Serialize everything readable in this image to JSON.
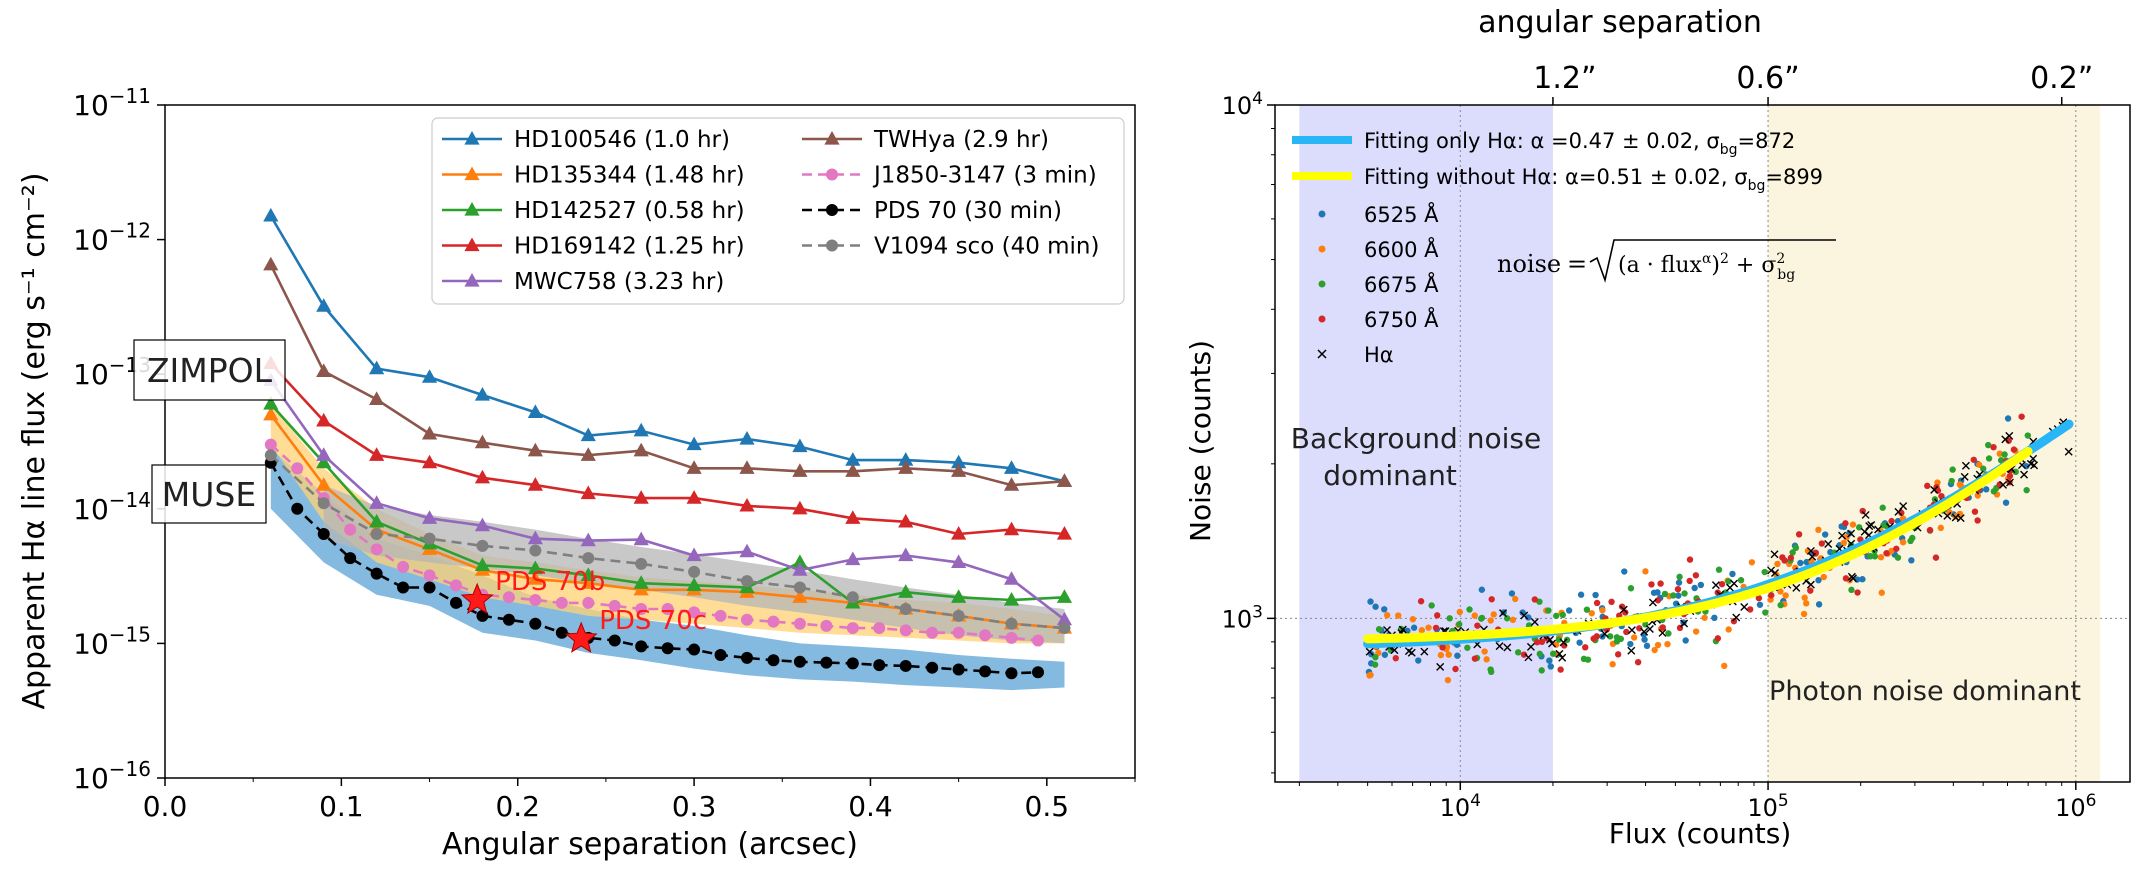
{
  "chart_data": [
    {
      "type": "line",
      "title": "",
      "xlabel": "Angular separation (arcsec)",
      "ylabel": "Apparent Hα line flux (erg s⁻¹ cm⁻²)",
      "yscale": "log",
      "xlim": [
        0.0,
        0.55
      ],
      "ylim": [
        1e-16,
        1e-11
      ],
      "x_ticks": [
        "0.0",
        "0.1",
        "0.2",
        "0.3",
        "0.4",
        "0.5"
      ],
      "y_ticks": [
        {
          "base": "10",
          "exp": "−11"
        },
        {
          "base": "10",
          "exp": "−12"
        },
        {
          "base": "10",
          "exp": "−13"
        },
        {
          "base": "10",
          "exp": "−14"
        },
        {
          "base": "10",
          "exp": "−15"
        },
        {
          "base": "10",
          "exp": "−16"
        }
      ],
      "legend_placement": "top-right",
      "colors": {
        "blue": "#1f77b4",
        "orange": "#ff7f0e",
        "green": "#2ca02c",
        "red": "#d62728",
        "purple": "#9467bd",
        "brown": "#8c564b",
        "pink": "#e377c2",
        "black": "#000000",
        "gray": "#7f7f7f",
        "band_blue": "#5ba3d6",
        "band_orange": "#ffd173",
        "band_gray": "#b5b5b5",
        "planet_star": "#ff1a1a"
      },
      "series": [
        {
          "name": "HD100546 (1.0 hr)",
          "color": "#1f77b4",
          "marker": "triangle",
          "dash": false,
          "x": [
            0.06,
            0.09,
            0.12,
            0.15,
            0.18,
            0.21,
            0.24,
            0.27,
            0.3,
            0.33,
            0.36,
            0.39,
            0.42,
            0.45,
            0.48,
            0.51
          ],
          "y": [
            1.5e-12,
            3.2e-13,
            1.1e-13,
            9.5e-14,
            7e-14,
            5.2e-14,
            3.5e-14,
            3.8e-14,
            3e-14,
            3.3e-14,
            2.9e-14,
            2.3e-14,
            2.3e-14,
            2.2e-14,
            2e-14,
            1.6e-14
          ]
        },
        {
          "name": "HD135344 (1.48 hr)",
          "color": "#ff7f0e",
          "marker": "triangle",
          "dash": false,
          "x": [
            0.06,
            0.09,
            0.12,
            0.15,
            0.18,
            0.21,
            0.24,
            0.27,
            0.3,
            0.33,
            0.36,
            0.39,
            0.42,
            0.45,
            0.48,
            0.51
          ],
          "y": [
            5e-14,
            1.5e-14,
            7e-15,
            5e-15,
            3.5e-15,
            3e-15,
            2.8e-15,
            2.5e-15,
            2.5e-15,
            2.4e-15,
            2.2e-15,
            2e-15,
            1.8e-15,
            1.6e-15,
            1.4e-15,
            1.3e-15
          ]
        },
        {
          "name": "HD142527 (0.58 hr)",
          "color": "#2ca02c",
          "marker": "triangle",
          "dash": false,
          "x": [
            0.06,
            0.09,
            0.12,
            0.15,
            0.18,
            0.21,
            0.24,
            0.27,
            0.3,
            0.33,
            0.36,
            0.39,
            0.42,
            0.45,
            0.48,
            0.51
          ],
          "y": [
            6e-14,
            2.2e-14,
            8e-15,
            5.5e-15,
            3.8e-15,
            3.6e-15,
            3.2e-15,
            2.8e-15,
            2.7e-15,
            2.6e-15,
            4e-15,
            2e-15,
            2.4e-15,
            2.2e-15,
            2.1e-15,
            2.2e-15
          ]
        },
        {
          "name": "HD169142 (1.25 hr)",
          "color": "#d62728",
          "marker": "triangle",
          "dash": false,
          "x": [
            0.06,
            0.09,
            0.12,
            0.15,
            0.18,
            0.21,
            0.24,
            0.27,
            0.3,
            0.33,
            0.36,
            0.39,
            0.42,
            0.45,
            0.48,
            0.51
          ],
          "y": [
            1.2e-13,
            4.5e-14,
            2.5e-14,
            2.2e-14,
            1.7e-14,
            1.5e-14,
            1.3e-14,
            1.2e-14,
            1.2e-14,
            1.05e-14,
            1e-14,
            8.5e-15,
            8e-15,
            6.5e-15,
            7e-15,
            6.5e-15
          ]
        },
        {
          "name": "MWC758 (3.23 hr)",
          "color": "#9467bd",
          "marker": "triangle",
          "dash": false,
          "x": [
            0.06,
            0.09,
            0.12,
            0.15,
            0.18,
            0.21,
            0.24,
            0.27,
            0.3,
            0.33,
            0.36,
            0.39,
            0.42,
            0.45,
            0.48,
            0.51
          ],
          "y": [
            9e-14,
            2.5e-14,
            1.1e-14,
            8.5e-15,
            7.5e-15,
            6e-15,
            5.8e-15,
            5.9e-15,
            4.5e-15,
            4.8e-15,
            3.5e-15,
            4.2e-15,
            4.5e-15,
            4e-15,
            3e-15,
            1.5e-15
          ]
        },
        {
          "name": "TWHya (2.9 hr)",
          "color": "#8c564b",
          "marker": "triangle",
          "dash": false,
          "x": [
            0.06,
            0.09,
            0.12,
            0.15,
            0.18,
            0.21,
            0.24,
            0.27,
            0.3,
            0.33,
            0.36,
            0.39,
            0.42,
            0.45,
            0.48,
            0.51
          ],
          "y": [
            6.5e-13,
            1.05e-13,
            6.5e-14,
            3.6e-14,
            3.1e-14,
            2.7e-14,
            2.5e-14,
            2.7e-14,
            2e-14,
            2e-14,
            1.9e-14,
            1.9e-14,
            2e-14,
            1.9e-14,
            1.5e-14,
            1.6e-14
          ]
        },
        {
          "name": "J1850-3147 (3 min)",
          "color": "#e377c2",
          "marker": "circle",
          "dash": true,
          "x": [
            0.06,
            0.075,
            0.09,
            0.105,
            0.12,
            0.135,
            0.15,
            0.165,
            0.18,
            0.195,
            0.21,
            0.225,
            0.24,
            0.255,
            0.27,
            0.285,
            0.3,
            0.315,
            0.33,
            0.345,
            0.36,
            0.375,
            0.39,
            0.405,
            0.42,
            0.435,
            0.45,
            0.465,
            0.48,
            0.495
          ],
          "y": [
            3e-14,
            2e-14,
            1.2e-14,
            7e-15,
            5e-15,
            3.7e-15,
            3.2e-15,
            2.7e-15,
            2.3e-15,
            2.2e-15,
            2.1e-15,
            2e-15,
            2e-15,
            1.9e-15,
            1.8e-15,
            1.8e-15,
            1.7e-15,
            1.6e-15,
            1.5e-15,
            1.45e-15,
            1.4e-15,
            1.35e-15,
            1.3e-15,
            1.3e-15,
            1.25e-15,
            1.2e-15,
            1.2e-15,
            1.15e-15,
            1.1e-15,
            1.05e-15
          ]
        },
        {
          "name": "PDS 70 (30 min)",
          "color": "#000000",
          "marker": "circle",
          "dash": true,
          "x": [
            0.06,
            0.075,
            0.09,
            0.105,
            0.12,
            0.135,
            0.15,
            0.165,
            0.18,
            0.195,
            0.21,
            0.225,
            0.24,
            0.255,
            0.27,
            0.285,
            0.3,
            0.315,
            0.33,
            0.345,
            0.36,
            0.375,
            0.39,
            0.405,
            0.42,
            0.435,
            0.45,
            0.465,
            0.48,
            0.495
          ],
          "y": [
            2.2e-14,
            1e-14,
            6.5e-15,
            4.3e-15,
            3.3e-15,
            2.6e-15,
            2.6e-15,
            2e-15,
            1.6e-15,
            1.5e-15,
            1.4e-15,
            1.2e-15,
            1.1e-15,
            1.05e-15,
            9.5e-16,
            9.2e-16,
            9e-16,
            8.2e-16,
            7.8e-16,
            7.5e-16,
            7.3e-16,
            7.2e-16,
            7.1e-16,
            6.9e-16,
            6.8e-16,
            6.6e-16,
            6.4e-16,
            6.2e-16,
            6e-16,
            6.1e-16
          ]
        },
        {
          "name": "V1094 sco (40 min)",
          "color": "#7f7f7f",
          "marker": "circle",
          "dash": true,
          "x": [
            0.06,
            0.09,
            0.12,
            0.15,
            0.18,
            0.21,
            0.24,
            0.27,
            0.3,
            0.33,
            0.36,
            0.39,
            0.42,
            0.45,
            0.48,
            0.51
          ],
          "y": [
            2.5e-14,
            1.1e-14,
            6.5e-15,
            6e-15,
            5.3e-15,
            4.9e-15,
            4.3e-15,
            3.9e-15,
            3.4e-15,
            2.9e-15,
            2.6e-15,
            2.2e-15,
            1.8e-15,
            1.6e-15,
            1.4e-15,
            1.3e-15
          ]
        }
      ],
      "bands": [
        {
          "color": "#5ba3d6",
          "x": [
            0.06,
            0.09,
            0.12,
            0.15,
            0.18,
            0.21,
            0.24,
            0.27,
            0.3,
            0.33,
            0.36,
            0.39,
            0.42,
            0.45,
            0.48,
            0.51
          ],
          "low": [
            1e-14,
            4e-15,
            2.3e-15,
            1.9e-15,
            1.2e-15,
            1.05e-15,
            8.5e-16,
            7.5e-16,
            6.5e-16,
            5.8e-16,
            5.4e-16,
            5.2e-16,
            4.9e-16,
            4.7e-16,
            4.5e-16,
            4.7e-16
          ],
          "high": [
            2.8e-14,
            1.3e-14,
            6e-15,
            4.5e-15,
            3.2e-15,
            2.2e-15,
            1.8e-15,
            1.5e-15,
            1.35e-15,
            1.15e-15,
            1e-15,
            9.5e-16,
            9e-16,
            8.2e-16,
            7.7e-16,
            7.3e-16
          ]
        },
        {
          "color": "#ffd173",
          "x": [
            0.06,
            0.09,
            0.12,
            0.15,
            0.18,
            0.21,
            0.24,
            0.27,
            0.3,
            0.33,
            0.36,
            0.39,
            0.42,
            0.45,
            0.48,
            0.51
          ],
          "low": [
            3e-14,
            8e-15,
            4e-15,
            3e-15,
            2.2e-15,
            1.9e-15,
            1.6e-15,
            1.5e-15,
            1.4e-15,
            1.3e-15,
            1.2e-15,
            1.15e-15,
            1.1e-15,
            1.05e-15,
            1e-15,
            1e-15
          ],
          "high": [
            6e-14,
            2e-14,
            1e-14,
            6.5e-15,
            4.5e-15,
            4e-15,
            3.5e-15,
            3.1e-15,
            2.9e-15,
            2.7e-15,
            2.5e-15,
            2.3e-15,
            2.1e-15,
            2e-15,
            1.8e-15,
            1.6e-15
          ]
        },
        {
          "color": "#b5b5b5",
          "x": [
            0.09,
            0.12,
            0.15,
            0.18,
            0.21,
            0.24,
            0.27,
            0.3,
            0.33,
            0.36,
            0.39,
            0.42,
            0.45,
            0.48,
            0.51
          ],
          "low": [
            6e-15,
            4.5e-15,
            4e-15,
            3.6e-15,
            3.2e-15,
            2.8e-15,
            2.5e-15,
            2.2e-15,
            1.9e-15,
            1.7e-15,
            1.5e-15,
            1.3e-15,
            1.15e-15,
            1.05e-15,
            1e-15
          ],
          "high": [
            1.5e-14,
            1.05e-14,
            9e-15,
            8e-15,
            7e-15,
            6e-15,
            5.2e-15,
            4.6e-15,
            4e-15,
            3.5e-15,
            3e-15,
            2.6e-15,
            2.3e-15,
            2e-15,
            1.8e-15
          ]
        }
      ],
      "planets": [
        {
          "label": "PDS 70b",
          "x": 0.177,
          "y": 2.1e-15
        },
        {
          "label": "PDS 70c",
          "x": 0.236,
          "y": 1.08e-15
        }
      ],
      "annotations": [
        {
          "label": "ZIMPOL",
          "y": 1e-13
        },
        {
          "label": "MUSE",
          "y": 1e-14
        }
      ]
    },
    {
      "type": "scatter",
      "title": "angular separation",
      "xlabel": "Flux (counts)",
      "ylabel": "Noise (counts)",
      "xscale": "log",
      "yscale": "log",
      "xlim": [
        2500,
        1500000
      ],
      "ylim": [
        480,
        10000
      ],
      "x_ticks": [
        {
          "base": "10",
          "exp": "4"
        },
        {
          "base": "10",
          "exp": "5"
        },
        {
          "base": "10",
          "exp": "6"
        }
      ],
      "y_ticks": [
        {
          "base": "10",
          "exp": "3"
        },
        {
          "base": "10",
          "exp": "4"
        }
      ],
      "top_ticks": [
        {
          "label": "1.2”",
          "x": 20000
        },
        {
          "label": "0.6”",
          "x": 100000
        },
        {
          "label": "0.2”",
          "x": 900000
        }
      ],
      "regions": [
        {
          "label_lines": [
            "Background noise",
            "dominant"
          ],
          "x_range": [
            3000,
            20000
          ],
          "color": "#dcdcfc"
        },
        {
          "label_lines": [
            "Photon noise dominant"
          ],
          "x_range": [
            100000,
            1200000
          ],
          "color": "#fbf5df"
        }
      ],
      "formula": "noise = √((a · flux^α)² + σ_bg²)",
      "fits": [
        {
          "label": "Fitting only Hα: α =0.47 ± 0.02, σ_bg=872",
          "label_main": "Fitting only Hα: α =0.47 ± 0.02, σ",
          "label_sub": "bg",
          "label_tail": "=872",
          "color": "#29b6f6",
          "alpha": 0.47,
          "sigma_bg": 872,
          "a": 3.45,
          "x_range": [
            5000,
            950000
          ]
        },
        {
          "label": "Fitting without Hα: α=0.51 ± 0.02, σ_bg=899",
          "label_main": "Fitting without Hα: α=0.51 ± 0.02, σ",
          "label_sub": "bg",
          "label_tail": "=899",
          "color": "#ffff00",
          "alpha": 0.51,
          "sigma_bg": 899,
          "a": 2.0,
          "x_range": [
            5000,
            700000
          ]
        }
      ],
      "scatter_series": [
        {
          "name": "6525 Å",
          "color": "#1f77b4",
          "marker": "dot",
          "count": 110,
          "scatter_dex": 0.07
        },
        {
          "name": "6600 Å",
          "color": "#ff7f0e",
          "marker": "dot",
          "count": 110,
          "scatter_dex": 0.07
        },
        {
          "name": "6675 Å",
          "color": "#2ca02c",
          "marker": "dot",
          "count": 110,
          "scatter_dex": 0.07
        },
        {
          "name": "6750 Å",
          "color": "#d62728",
          "marker": "dot",
          "count": 110,
          "scatter_dex": 0.07
        },
        {
          "name": "Hα",
          "color": "#000000",
          "marker": "x",
          "count": 150,
          "scatter_dex": 0.04
        }
      ]
    }
  ]
}
